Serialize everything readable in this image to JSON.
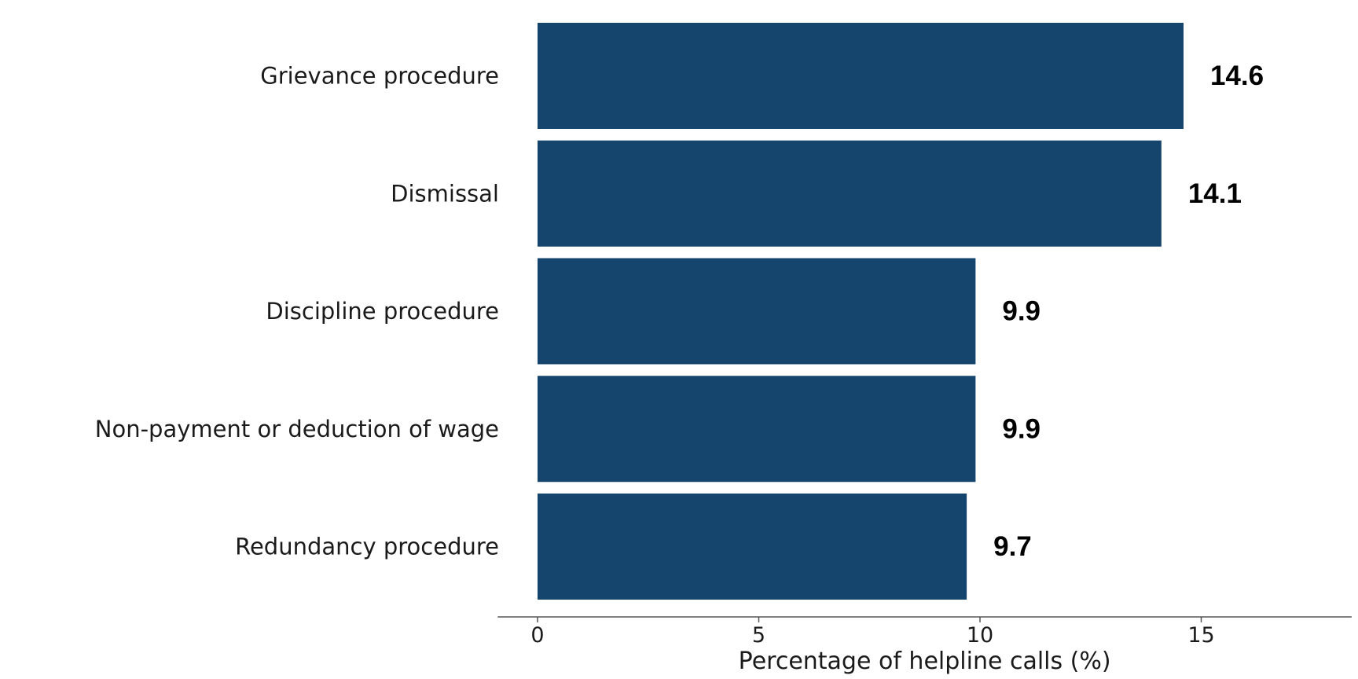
{
  "chart_data": {
    "type": "bar",
    "orientation": "horizontal",
    "categories": [
      "Grievance procedure",
      "Dismissal",
      "Discipline procedure",
      "Non-payment or deduction of wage",
      "Redundancy procedure"
    ],
    "values": [
      14.6,
      14.1,
      9.9,
      9.9,
      9.7
    ],
    "data_labels": [
      "14.6",
      "14.1",
      "9.9",
      "9.9",
      "9.7"
    ],
    "xlabel": "Percentage of helpline calls (%)",
    "ylabel": "",
    "xlim": [
      -0.9,
      18.4
    ],
    "xticks": [
      0,
      5,
      10,
      15
    ],
    "xtick_labels": [
      "0",
      "5",
      "10",
      "15"
    ],
    "grid": false,
    "colors": {
      "bar": "#15446D",
      "axis": "#555555"
    }
  }
}
